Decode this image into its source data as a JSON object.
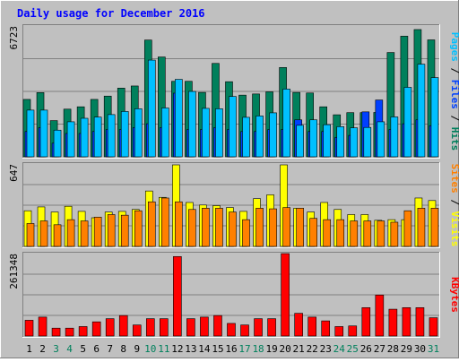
{
  "title": "Daily usage for December 2016",
  "colors": {
    "background": "#c0c0c0",
    "plot": "#c0c0c0",
    "title": "#0000ff",
    "hits": "#00805c",
    "files": "#0040ff",
    "pages": "#00c0ff",
    "visits": "#ffff00",
    "sites": "#ff8000",
    "kbytes": "#ff0000",
    "weekend_label": "#00805c",
    "weekday_label": "#000000"
  },
  "chart_data": [
    {
      "type": "bar",
      "panel": "top",
      "ylabel_max": "6723",
      "ylim": [
        0,
        6723
      ],
      "series_label_parts": [
        "Pages",
        "Files",
        "Hits"
      ],
      "categories": [
        "1",
        "2",
        "3",
        "4",
        "5",
        "6",
        "7",
        "8",
        "9",
        "10",
        "11",
        "12",
        "13",
        "14",
        "15",
        "16",
        "17",
        "18",
        "19",
        "20",
        "21",
        "22",
        "23",
        "24",
        "25",
        "26",
        "27",
        "28",
        "29",
        "30",
        "31"
      ],
      "weekend": [
        "3",
        "4",
        "10",
        "11",
        "17",
        "18",
        "24",
        "25",
        "31"
      ],
      "series": [
        {
          "name": "Hits",
          "values": [
            2950,
            3300,
            1860,
            2450,
            2570,
            2950,
            3120,
            3530,
            3640,
            6000,
            5130,
            3880,
            3880,
            3310,
            4800,
            3860,
            3170,
            3230,
            3340,
            4590,
            3310,
            3280,
            2570,
            2160,
            2270,
            2270,
            2280,
            5360,
            6200,
            6540,
            6010
          ]
        },
        {
          "name": "Files",
          "values": [
            1300,
            1500,
            700,
            1200,
            1200,
            1300,
            1400,
            1400,
            1500,
            1700,
            1500,
            3270,
            1400,
            1400,
            1500,
            1400,
            1300,
            1300,
            1400,
            1400,
            1900,
            1300,
            1300,
            1000,
            1100,
            2310,
            2920,
            1400,
            1700,
            1900,
            1600
          ]
        },
        {
          "name": "Pages",
          "values": [
            2400,
            2400,
            1370,
            1800,
            1980,
            2040,
            2170,
            2330,
            2470,
            4970,
            2510,
            3980,
            3360,
            2490,
            2470,
            3100,
            2030,
            2100,
            2260,
            3480,
            1620,
            1900,
            1650,
            1550,
            1490,
            1510,
            1800,
            2050,
            3570,
            4760,
            4070
          ]
        }
      ]
    },
    {
      "type": "bar",
      "panel": "middle",
      "ylabel_max": "647",
      "ylim": [
        0,
        647
      ],
      "series_label_parts": [
        "Sites",
        "Visits"
      ],
      "categories": [
        "1",
        "2",
        "3",
        "4",
        "5",
        "6",
        "7",
        "8",
        "9",
        "10",
        "11",
        "12",
        "13",
        "14",
        "15",
        "16",
        "17",
        "18",
        "19",
        "20",
        "21",
        "22",
        "23",
        "24",
        "25",
        "26",
        "27",
        "28",
        "29",
        "30",
        "31"
      ],
      "series": [
        {
          "name": "Visits",
          "values": [
            280,
            310,
            270,
            315,
            275,
            225,
            270,
            275,
            290,
            435,
            385,
            640,
            345,
            325,
            320,
            305,
            275,
            375,
            405,
            640,
            300,
            270,
            345,
            290,
            250,
            250,
            205,
            210,
            210,
            380,
            360
          ]
        },
        {
          "name": "Sites",
          "values": [
            180,
            200,
            170,
            210,
            200,
            230,
            250,
            245,
            280,
            350,
            380,
            350,
            290,
            300,
            300,
            270,
            210,
            300,
            295,
            305,
            300,
            220,
            210,
            210,
            200,
            200,
            200,
            190,
            280,
            300,
            300
          ]
        }
      ]
    },
    {
      "type": "bar",
      "panel": "bottom",
      "ylabel_max": "261348",
      "ylim": [
        0,
        261348
      ],
      "series_label_parts": [
        "KBytes"
      ],
      "categories": [
        "1",
        "2",
        "3",
        "4",
        "5",
        "6",
        "7",
        "8",
        "9",
        "10",
        "11",
        "12",
        "13",
        "14",
        "15",
        "16",
        "17",
        "18",
        "19",
        "20",
        "21",
        "22",
        "23",
        "24",
        "25",
        "26",
        "27",
        "28",
        "29",
        "30",
        "31"
      ],
      "series": [
        {
          "name": "KBytes",
          "values": [
            50000,
            60000,
            25000,
            25000,
            30000,
            45000,
            55000,
            65000,
            35000,
            55000,
            55000,
            252000,
            55000,
            60000,
            65000,
            40000,
            35000,
            55000,
            55000,
            261348,
            72000,
            60000,
            48000,
            30000,
            32000,
            90000,
            130000,
            85000,
            90000,
            90000,
            58000
          ]
        }
      ]
    }
  ]
}
